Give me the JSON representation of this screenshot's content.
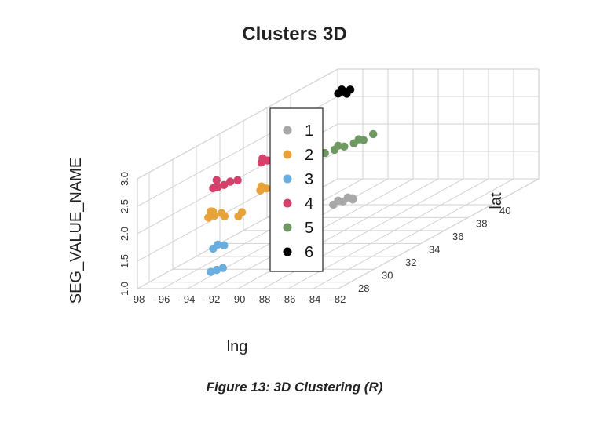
{
  "title": "Clusters 3D",
  "caption": "Figure 13: 3D Clustering (R)",
  "chart_data": {
    "type": "scatter",
    "projection": "3d",
    "title": "Clusters 3D",
    "xlabel": "lng",
    "ylabel": "lat",
    "zlabel": "SEG_VALUE_NAME",
    "x_ticks": [
      "-98",
      "-96",
      "-94",
      "-92",
      "-90",
      "-88",
      "-86",
      "-84",
      "-82"
    ],
    "y_ticks": [
      "28",
      "30",
      "32",
      "34",
      "36",
      "38",
      "40"
    ],
    "z_ticks": [
      "1.0",
      "1.5",
      "2.0",
      "2.5",
      "3.0"
    ],
    "xlim": [
      -98,
      -82
    ],
    "ylim": [
      27,
      44
    ],
    "zlim": [
      1.0,
      3.0
    ],
    "grid": true,
    "legend_position": "center",
    "series": [
      {
        "name": "1",
        "color": "#a8a8a8",
        "points": [
          {
            "x": -94.6,
            "y": 40.0,
            "z": 1.0
          },
          {
            "x": -94.3,
            "y": 40.5,
            "z": 1.0
          },
          {
            "x": -94.0,
            "y": 41.0,
            "z": 1.0
          },
          {
            "x": -93.8,
            "y": 40.8,
            "z": 1.0
          },
          {
            "x": -94.4,
            "y": 40.2,
            "z": 1.05
          },
          {
            "x": -94.1,
            "y": 40.7,
            "z": 1.05
          }
        ]
      },
      {
        "name": "2",
        "color": "#e8a23a",
        "points": [
          {
            "x": -94.7,
            "y": 29.5,
            "z": 2.0
          },
          {
            "x": -94.5,
            "y": 29.8,
            "z": 2.0
          },
          {
            "x": -94.3,
            "y": 30.2,
            "z": 2.0
          },
          {
            "x": -94.8,
            "y": 30.0,
            "z": 2.05
          },
          {
            "x": -93.6,
            "y": 29.7,
            "z": 2.0
          },
          {
            "x": -92.5,
            "y": 29.7,
            "z": 2.0
          },
          {
            "x": -92.4,
            "y": 29.9,
            "z": 2.05
          },
          {
            "x": -94.6,
            "y": 29.6,
            "z": 2.1
          },
          {
            "x": -94.5,
            "y": 33.7,
            "z": 2.0
          },
          {
            "x": -94.3,
            "y": 34.0,
            "z": 2.0
          },
          {
            "x": -94.6,
            "y": 33.9,
            "z": 2.05
          }
        ]
      },
      {
        "name": "3",
        "color": "#6aaee0",
        "points": [
          {
            "x": -94.6,
            "y": 29.6,
            "z": 1.0
          },
          {
            "x": -94.4,
            "y": 29.9,
            "z": 1.0
          },
          {
            "x": -94.2,
            "y": 30.2,
            "z": 1.0
          },
          {
            "x": -94.6,
            "y": 29.8,
            "z": 1.4
          },
          {
            "x": -94.4,
            "y": 30.0,
            "z": 1.45
          },
          {
            "x": -94.2,
            "y": 30.3,
            "z": 1.4
          }
        ]
      },
      {
        "name": "4",
        "color": "#d6406a",
        "points": [
          {
            "x": -94.6,
            "y": 29.8,
            "z": 2.5
          },
          {
            "x": -94.4,
            "y": 30.0,
            "z": 2.5
          },
          {
            "x": -94.2,
            "y": 30.3,
            "z": 2.5
          },
          {
            "x": -93.8,
            "y": 30.4,
            "z": 2.55
          },
          {
            "x": -93.4,
            "y": 30.6,
            "z": 2.55
          },
          {
            "x": -94.7,
            "y": 30.2,
            "z": 2.6
          },
          {
            "x": -94.5,
            "y": 33.8,
            "z": 2.5
          },
          {
            "x": -94.3,
            "y": 34.1,
            "z": 2.5
          },
          {
            "x": -94.6,
            "y": 34.0,
            "z": 2.55
          }
        ]
      },
      {
        "name": "5",
        "color": "#6e9a62",
        "points": [
          {
            "x": -94.8,
            "y": 39.5,
            "z": 2.0
          },
          {
            "x": -94.5,
            "y": 40.0,
            "z": 2.0
          },
          {
            "x": -94.2,
            "y": 40.5,
            "z": 2.0
          },
          {
            "x": -93.9,
            "y": 41.0,
            "z": 2.0
          },
          {
            "x": -93.6,
            "y": 41.5,
            "z": 2.0
          },
          {
            "x": -93.3,
            "y": 42.0,
            "z": 2.05
          },
          {
            "x": -94.4,
            "y": 40.2,
            "z": 2.05
          },
          {
            "x": -93.7,
            "y": 41.2,
            "z": 2.05
          }
        ]
      },
      {
        "name": "6",
        "color": "#000000",
        "points": [
          {
            "x": -94.4,
            "y": 40.2,
            "z": 3.0
          },
          {
            "x": -94.2,
            "y": 40.5,
            "z": 3.0
          },
          {
            "x": -94.0,
            "y": 40.8,
            "z": 3.0
          },
          {
            "x": -94.3,
            "y": 40.4,
            "z": 3.05
          },
          {
            "x": -94.1,
            "y": 40.6,
            "z": 2.95
          }
        ]
      }
    ]
  }
}
